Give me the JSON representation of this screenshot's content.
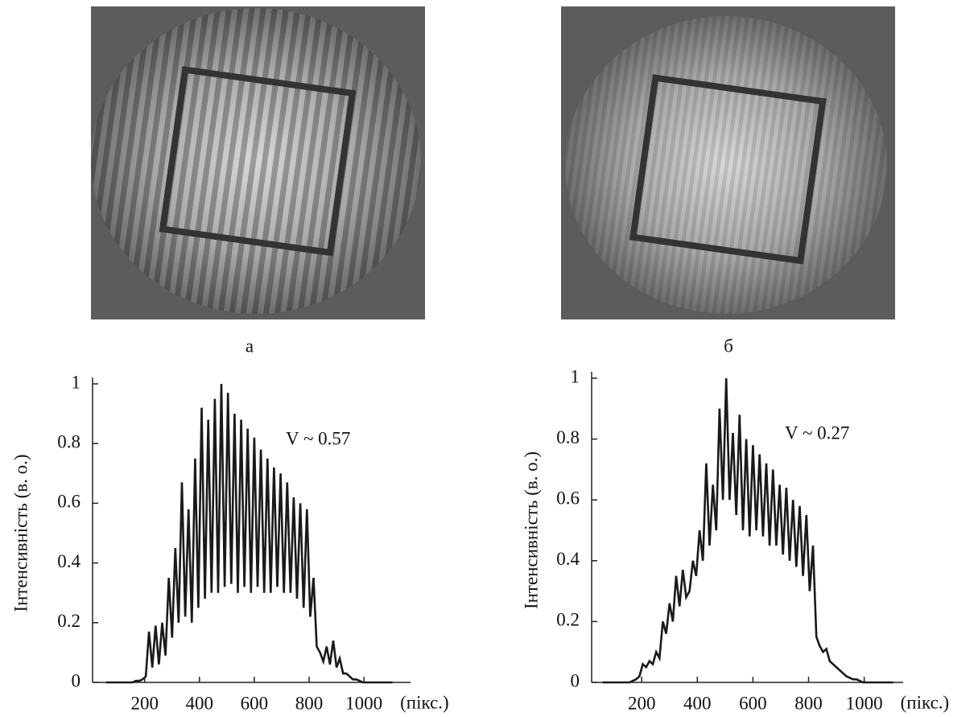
{
  "images": [
    {
      "label": "а"
    },
    {
      "label": "б"
    }
  ],
  "chart_data": [
    {
      "type": "line",
      "y_label": "Інтенсивність (в. о.)",
      "x_label": "(пікс.)",
      "annotation": "V ~ 0.57",
      "color": "#1a1a1a",
      "xlim": [
        10,
        1170
      ],
      "ylim": [
        0,
        1
      ],
      "xticks": [
        200,
        400,
        600,
        800,
        1000
      ],
      "yticks": [
        0,
        0.2,
        0.4,
        0.6,
        0.8,
        1
      ],
      "x": [
        60,
        72,
        84,
        96,
        108,
        120,
        132,
        144,
        156,
        168,
        180,
        192,
        204,
        216,
        228,
        240,
        252,
        264,
        276,
        288,
        300,
        312,
        324,
        336,
        348,
        360,
        372,
        384,
        396,
        408,
        420,
        432,
        444,
        456,
        468,
        480,
        492,
        504,
        516,
        528,
        540,
        552,
        564,
        576,
        588,
        600,
        612,
        624,
        636,
        648,
        660,
        672,
        684,
        696,
        708,
        720,
        732,
        744,
        756,
        768,
        780,
        792,
        804,
        816,
        828,
        840,
        852,
        864,
        876,
        888,
        900,
        912,
        924,
        936,
        948,
        960,
        972,
        984,
        996,
        1008,
        1020,
        1032,
        1044,
        1056,
        1068,
        1080,
        1092,
        1104
      ],
      "values": [
        0,
        0,
        0,
        0,
        0,
        0,
        0,
        0,
        0,
        0.005,
        0.005,
        0.01,
        0.02,
        0.17,
        0.05,
        0.19,
        0.06,
        0.2,
        0.09,
        0.35,
        0.15,
        0.45,
        0.2,
        0.67,
        0.22,
        0.58,
        0.2,
        0.75,
        0.25,
        0.92,
        0.28,
        0.88,
        0.3,
        0.95,
        0.3,
        1.0,
        0.32,
        0.97,
        0.33,
        0.9,
        0.3,
        0.88,
        0.32,
        0.85,
        0.3,
        0.82,
        0.32,
        0.78,
        0.3,
        0.75,
        0.3,
        0.72,
        0.32,
        0.7,
        0.3,
        0.67,
        0.3,
        0.62,
        0.28,
        0.6,
        0.25,
        0.58,
        0.22,
        0.35,
        0.12,
        0.1,
        0.07,
        0.12,
        0.06,
        0.14,
        0.05,
        0.08,
        0.03,
        0.03,
        0.02,
        0.01,
        0.01,
        0.005,
        0,
        0,
        0,
        0,
        0,
        0,
        0,
        0,
        0,
        0
      ]
    },
    {
      "type": "line",
      "y_label": "Інтенсивність (в. о.)",
      "x_label": "(пікс.)",
      "annotation": "V ~ 0.27",
      "color": "#1a1a1a",
      "xlim": [
        20,
        1140
      ],
      "ylim": [
        0,
        1
      ],
      "xticks": [
        200,
        400,
        600,
        800,
        1000
      ],
      "yticks": [
        0,
        0.2,
        0.4,
        0.6,
        0.8,
        1
      ],
      "x": [
        60,
        72,
        84,
        96,
        108,
        120,
        132,
        144,
        156,
        168,
        180,
        192,
        204,
        216,
        228,
        240,
        252,
        264,
        276,
        288,
        300,
        312,
        324,
        336,
        348,
        360,
        372,
        384,
        396,
        408,
        420,
        432,
        444,
        456,
        468,
        480,
        492,
        504,
        516,
        528,
        540,
        552,
        564,
        576,
        588,
        600,
        612,
        624,
        636,
        648,
        660,
        672,
        684,
        696,
        708,
        720,
        732,
        744,
        756,
        768,
        780,
        792,
        804,
        816,
        828,
        840,
        852,
        864,
        876,
        888,
        900,
        912,
        924,
        936,
        948,
        960,
        972,
        984,
        996,
        1008,
        1020,
        1032,
        1044,
        1056,
        1068,
        1080,
        1092,
        1104
      ],
      "values": [
        0,
        0,
        0,
        0,
        0,
        0,
        0,
        0,
        0,
        0.005,
        0.01,
        0.02,
        0.06,
        0.05,
        0.07,
        0.06,
        0.1,
        0.08,
        0.2,
        0.16,
        0.26,
        0.2,
        0.35,
        0.25,
        0.37,
        0.28,
        0.3,
        0.4,
        0.35,
        0.5,
        0.4,
        0.72,
        0.45,
        0.65,
        0.5,
        0.9,
        0.6,
        1.0,
        0.6,
        0.82,
        0.55,
        0.88,
        0.5,
        0.8,
        0.48,
        0.78,
        0.5,
        0.75,
        0.48,
        0.72,
        0.45,
        0.7,
        0.45,
        0.65,
        0.42,
        0.64,
        0.4,
        0.6,
        0.38,
        0.58,
        0.35,
        0.55,
        0.3,
        0.45,
        0.15,
        0.12,
        0.1,
        0.11,
        0.07,
        0.06,
        0.05,
        0.04,
        0.03,
        0.02,
        0.015,
        0.01,
        0.01,
        0.005,
        0,
        0,
        0,
        0,
        0,
        0,
        0,
        0,
        0,
        0
      ]
    }
  ]
}
